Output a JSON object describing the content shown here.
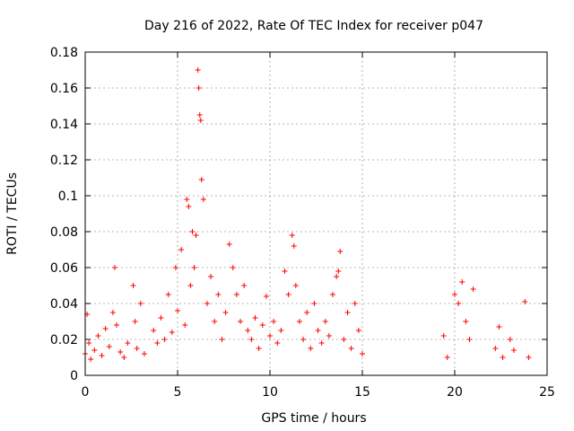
{
  "chart_data": {
    "type": "scatter",
    "title": "Day 216 of 2022, Rate Of TEC Index for receiver p047",
    "xlabel": "GPS time / hours",
    "ylabel": "ROTI / TECUs",
    "xlim": [
      0,
      25
    ],
    "ylim": [
      0,
      0.18
    ],
    "x_ticks": [
      0,
      5,
      10,
      15,
      20,
      25
    ],
    "x_tick_labels": [
      "0",
      "5",
      "10",
      "15",
      "20",
      "25"
    ],
    "y_ticks": [
      0,
      0.02,
      0.04,
      0.06,
      0.08,
      0.1,
      0.12,
      0.14,
      0.16,
      0.18
    ],
    "y_tick_labels": [
      "0",
      "0.02",
      "0.04",
      "0.06",
      "0.08",
      "0.1",
      "0.12",
      "0.14",
      "0.16",
      "0.18"
    ],
    "grid": true,
    "marker": "plus",
    "color": "#ff0000",
    "series": [
      {
        "x": [
          0.0,
          0.1,
          0.2,
          0.3,
          0.5,
          0.7,
          0.9,
          1.1,
          1.3,
          1.5,
          1.6,
          1.7,
          1.9,
          2.1,
          2.3,
          2.6,
          2.7,
          2.8,
          3.0,
          3.2,
          3.7,
          3.9,
          4.1,
          4.3,
          4.5,
          4.7,
          4.9,
          5.0,
          5.2,
          5.4,
          5.5,
          5.6,
          5.7,
          5.8,
          5.9,
          6.0,
          6.1,
          6.15,
          6.2,
          6.25,
          6.3,
          6.4,
          6.6,
          6.8,
          7.0,
          7.2,
          7.4,
          7.6,
          7.8,
          8.0,
          8.2,
          8.4,
          8.6,
          8.8,
          9.0,
          9.2,
          9.4,
          9.6,
          9.8,
          10.0,
          10.2,
          10.4,
          10.6,
          10.8,
          11.0,
          11.2,
          11.3,
          11.4,
          11.6,
          11.8,
          12.0,
          12.2,
          12.4,
          12.6,
          12.8,
          13.0,
          13.2,
          13.4,
          13.6,
          13.7,
          13.8,
          14.0,
          14.2,
          14.4,
          14.6,
          14.8,
          15.0,
          19.4,
          19.6,
          20.0,
          20.2,
          20.4,
          20.6,
          20.8,
          21.0,
          22.2,
          22.4,
          22.6,
          23.0,
          23.2,
          23.8,
          24.0
        ],
        "y": [
          0.012,
          0.034,
          0.018,
          0.009,
          0.014,
          0.022,
          0.011,
          0.026,
          0.016,
          0.035,
          0.06,
          0.028,
          0.013,
          0.01,
          0.018,
          0.05,
          0.03,
          0.015,
          0.04,
          0.012,
          0.025,
          0.018,
          0.032,
          0.02,
          0.045,
          0.024,
          0.06,
          0.036,
          0.07,
          0.028,
          0.098,
          0.094,
          0.05,
          0.08,
          0.06,
          0.078,
          0.17,
          0.16,
          0.145,
          0.142,
          0.109,
          0.098,
          0.04,
          0.055,
          0.03,
          0.045,
          0.02,
          0.035,
          0.073,
          0.06,
          0.045,
          0.03,
          0.05,
          0.025,
          0.02,
          0.032,
          0.015,
          0.028,
          0.044,
          0.022,
          0.03,
          0.018,
          0.025,
          0.058,
          0.045,
          0.078,
          0.072,
          0.05,
          0.03,
          0.02,
          0.035,
          0.015,
          0.04,
          0.025,
          0.018,
          0.03,
          0.022,
          0.045,
          0.055,
          0.058,
          0.069,
          0.02,
          0.035,
          0.015,
          0.04,
          0.025,
          0.012,
          0.022,
          0.01,
          0.045,
          0.04,
          0.052,
          0.03,
          0.02,
          0.048,
          0.015,
          0.027,
          0.01,
          0.02,
          0.014,
          0.041,
          0.01
        ]
      }
    ]
  }
}
